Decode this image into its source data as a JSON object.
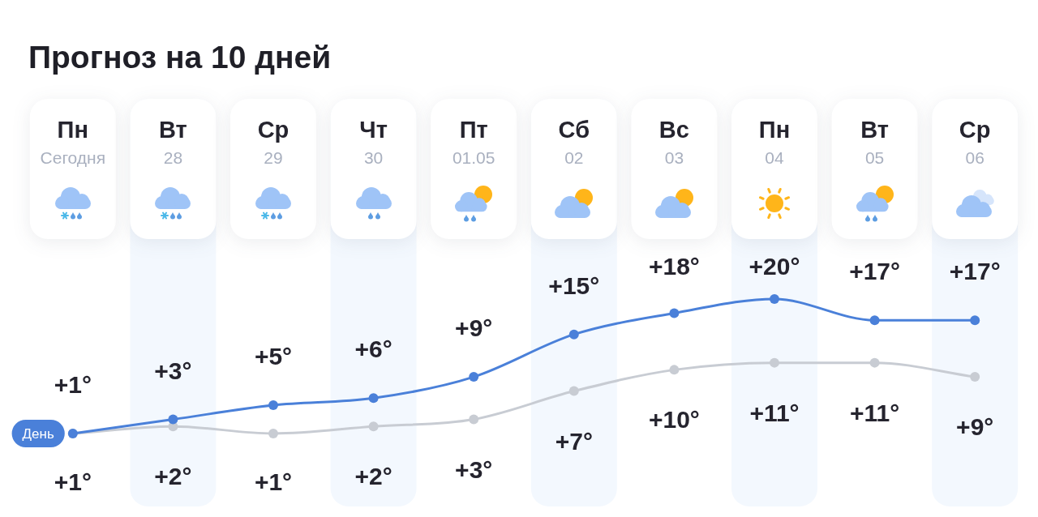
{
  "chart_data": {
    "type": "line",
    "title": "Прогноз на 10 дней",
    "categories": [
      "Пн\nСегодня",
      "Вт\n28",
      "Ср\n29",
      "Чт\n30",
      "Пт\n01.05",
      "Сб\n02",
      "Вс\n03",
      "Пн\n04",
      "Вт\n05",
      "Ср\n06"
    ],
    "series": [
      {
        "name": "День",
        "color": "#4a80d9",
        "values": [
          1,
          3,
          5,
          6,
          9,
          15,
          18,
          20,
          17,
          17
        ],
        "value_labels": [
          "+1°",
          "+3°",
          "+5°",
          "+6°",
          "+9°",
          "+15°",
          "+18°",
          "+20°",
          "+17°",
          "+17°"
        ]
      },
      {
        "color": "#c8ccd3",
        "values": [
          1,
          2,
          1,
          2,
          3,
          7,
          10,
          11,
          11,
          9
        ],
        "value_labels": [
          "+1°",
          "+2°",
          "+1°",
          "+2°",
          "+3°",
          "+7°",
          "+10°",
          "+11°",
          "+11°",
          "+9°"
        ]
      }
    ],
    "marker": "circle",
    "bands": [
      {
        "axis": "x",
        "from": "Вт\n28",
        "to": "Вт\n28",
        "color": "#f3f8fe"
      },
      {
        "axis": "x",
        "from": "Чт\n30",
        "to": "Чт\n30",
        "color": "#f3f8fe"
      },
      {
        "axis": "x",
        "from": "Сб\n02",
        "to": "Сб\n02",
        "color": "#f3f8fe"
      },
      {
        "axis": "x",
        "from": "Пн\n04",
        "to": "Пн\n04",
        "color": "#f3f8fe"
      },
      {
        "axis": "x",
        "from": "Ср\n06",
        "to": "Ср\n06",
        "color": "#f3f8fe"
      }
    ]
  }
}
